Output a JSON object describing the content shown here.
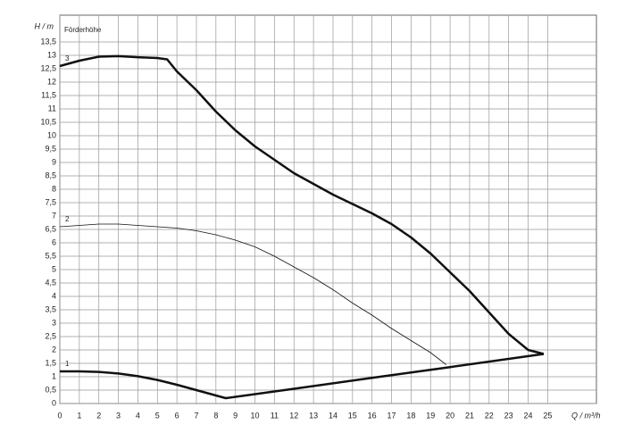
{
  "chart_data": {
    "type": "line",
    "title": "Förderhöhe",
    "y_label": "H / m",
    "x_label": "Q / m³/h",
    "xlim": [
      0,
      27.5
    ],
    "ylim": [
      0,
      14.5
    ],
    "xticks": [
      0,
      1,
      2,
      3,
      4,
      5,
      6,
      7,
      8,
      9,
      10,
      11,
      12,
      13,
      14,
      15,
      16,
      17,
      18,
      19,
      20,
      21,
      22,
      23,
      24,
      25
    ],
    "yticks": [
      0,
      {
        "value": 0.5,
        "label": "0,5"
      },
      1,
      {
        "value": 1.5,
        "label": "1,5"
      },
      2,
      {
        "value": 2.5,
        "label": "2,5"
      },
      3,
      {
        "value": 3.5,
        "label": "3,5"
      },
      4,
      {
        "value": 4.5,
        "label": "4,5"
      },
      5,
      {
        "value": 5.5,
        "label": "5,5"
      },
      6,
      {
        "value": 6.5,
        "label": "6,5"
      },
      7,
      {
        "value": 7.5,
        "label": "7,5"
      },
      8,
      {
        "value": 8.5,
        "label": "8,5"
      },
      9,
      {
        "value": 9.5,
        "label": "9,5"
      },
      10,
      {
        "value": 10.5,
        "label": "10,5"
      },
      11,
      {
        "value": 11.5,
        "label": "11,5"
      },
      12,
      {
        "value": 12.5,
        "label": "12,5"
      },
      13,
      {
        "value": 13.5,
        "label": "13,5"
      }
    ],
    "grid": true,
    "series": [
      {
        "name": "1",
        "color": "#111111",
        "line_width": 2.5,
        "x": [
          0,
          1,
          2,
          3,
          4,
          5,
          6,
          7,
          8,
          8.5,
          12,
          16,
          20,
          24.8
        ],
        "values": [
          1.2,
          1.2,
          1.18,
          1.12,
          1.02,
          0.88,
          0.7,
          0.5,
          0.3,
          0.2,
          0.55,
          0.96,
          1.36,
          1.85
        ]
      },
      {
        "name": "2",
        "color": "#111111",
        "line_width": 0.8,
        "x": [
          0,
          1,
          2,
          3,
          4,
          5,
          6,
          7,
          8,
          9,
          10,
          11,
          12,
          13,
          14,
          15,
          16,
          17,
          18,
          19,
          19.8
        ],
        "values": [
          6.6,
          6.65,
          6.7,
          6.7,
          6.65,
          6.6,
          6.55,
          6.45,
          6.3,
          6.1,
          5.85,
          5.5,
          5.1,
          4.7,
          4.25,
          3.75,
          3.3,
          2.8,
          2.35,
          1.9,
          1.45
        ]
      },
      {
        "name": "3",
        "color": "#111111",
        "line_width": 2.5,
        "x": [
          0,
          1,
          2,
          3,
          4,
          5,
          5.5,
          6,
          7,
          8,
          9,
          10,
          11,
          12,
          13,
          14,
          15,
          16,
          17,
          18,
          19,
          20,
          21,
          22,
          23,
          24,
          24.8
        ],
        "values": [
          12.6,
          12.8,
          12.95,
          12.97,
          12.93,
          12.9,
          12.85,
          12.4,
          11.7,
          10.9,
          10.2,
          9.6,
          9.1,
          8.6,
          8.2,
          7.8,
          7.45,
          7.1,
          6.7,
          6.2,
          5.6,
          4.9,
          4.2,
          3.4,
          2.6,
          2.0,
          1.85
        ]
      }
    ]
  }
}
